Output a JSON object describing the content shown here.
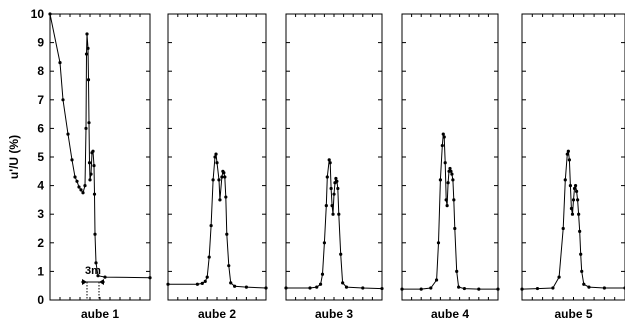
{
  "chart_data": {
    "type": "line",
    "ylabel": "u'/U (%)",
    "ylim": [
      0,
      10
    ],
    "yticks": [
      "0",
      "1",
      "2",
      "3",
      "4",
      "5",
      "6",
      "7",
      "8",
      "9",
      "10"
    ],
    "annotation": "3m",
    "grid": false,
    "panels": [
      {
        "label": "aube 1",
        "points": [
          [
            0.0,
            10.0
          ],
          [
            0.1,
            8.3
          ],
          [
            0.13,
            7.0
          ],
          [
            0.18,
            5.8
          ],
          [
            0.22,
            4.9
          ],
          [
            0.25,
            4.3
          ],
          [
            0.27,
            4.15
          ],
          [
            0.29,
            3.95
          ],
          [
            0.31,
            3.85
          ],
          [
            0.33,
            3.75
          ],
          [
            0.35,
            4.0
          ],
          [
            0.36,
            6.0
          ],
          [
            0.365,
            8.6
          ],
          [
            0.37,
            9.3
          ],
          [
            0.38,
            8.8
          ],
          [
            0.385,
            7.7
          ],
          [
            0.39,
            6.2
          ],
          [
            0.395,
            4.8
          ],
          [
            0.4,
            4.2
          ],
          [
            0.41,
            4.4
          ],
          [
            0.42,
            5.15
          ],
          [
            0.43,
            5.2
          ],
          [
            0.44,
            4.7
          ],
          [
            0.445,
            3.7
          ],
          [
            0.45,
            2.3
          ],
          [
            0.46,
            1.3
          ],
          [
            0.48,
            0.85
          ],
          [
            0.55,
            0.8
          ],
          [
            1.0,
            0.78
          ]
        ]
      },
      {
        "label": "aube 2",
        "points": [
          [
            0.0,
            0.55
          ],
          [
            0.3,
            0.55
          ],
          [
            0.35,
            0.58
          ],
          [
            0.38,
            0.65
          ],
          [
            0.4,
            0.8
          ],
          [
            0.42,
            1.5
          ],
          [
            0.44,
            2.6
          ],
          [
            0.46,
            4.2
          ],
          [
            0.48,
            5.0
          ],
          [
            0.49,
            5.1
          ],
          [
            0.5,
            4.8
          ],
          [
            0.52,
            4.2
          ],
          [
            0.53,
            3.5
          ],
          [
            0.55,
            4.3
          ],
          [
            0.56,
            4.5
          ],
          [
            0.57,
            4.45
          ],
          [
            0.58,
            4.3
          ],
          [
            0.59,
            3.6
          ],
          [
            0.6,
            2.3
          ],
          [
            0.62,
            1.2
          ],
          [
            0.64,
            0.6
          ],
          [
            0.68,
            0.48
          ],
          [
            0.8,
            0.45
          ],
          [
            1.0,
            0.42
          ]
        ]
      },
      {
        "label": "aube 3",
        "points": [
          [
            0.0,
            0.42
          ],
          [
            0.25,
            0.42
          ],
          [
            0.32,
            0.45
          ],
          [
            0.36,
            0.55
          ],
          [
            0.38,
            0.9
          ],
          [
            0.4,
            2.0
          ],
          [
            0.42,
            3.3
          ],
          [
            0.43,
            4.3
          ],
          [
            0.45,
            4.9
          ],
          [
            0.46,
            4.8
          ],
          [
            0.47,
            3.9
          ],
          [
            0.48,
            3.3
          ],
          [
            0.49,
            3.0
          ],
          [
            0.5,
            3.7
          ],
          [
            0.51,
            4.1
          ],
          [
            0.52,
            4.25
          ],
          [
            0.53,
            4.15
          ],
          [
            0.54,
            3.9
          ],
          [
            0.55,
            3.0
          ],
          [
            0.57,
            1.6
          ],
          [
            0.59,
            0.6
          ],
          [
            0.63,
            0.45
          ],
          [
            0.8,
            0.42
          ],
          [
            1.0,
            0.4
          ]
        ]
      },
      {
        "label": "aube 4",
        "points": [
          [
            0.0,
            0.38
          ],
          [
            0.2,
            0.38
          ],
          [
            0.3,
            0.42
          ],
          [
            0.36,
            0.7
          ],
          [
            0.38,
            2.0
          ],
          [
            0.4,
            4.2
          ],
          [
            0.42,
            5.4
          ],
          [
            0.43,
            5.8
          ],
          [
            0.44,
            5.7
          ],
          [
            0.45,
            4.8
          ],
          [
            0.46,
            3.5
          ],
          [
            0.47,
            3.3
          ],
          [
            0.48,
            4.1
          ],
          [
            0.49,
            4.5
          ],
          [
            0.5,
            4.6
          ],
          [
            0.51,
            4.5
          ],
          [
            0.52,
            4.4
          ],
          [
            0.53,
            4.2
          ],
          [
            0.54,
            3.5
          ],
          [
            0.55,
            2.5
          ],
          [
            0.57,
            1.0
          ],
          [
            0.59,
            0.45
          ],
          [
            0.65,
            0.4
          ],
          [
            0.8,
            0.38
          ],
          [
            1.0,
            0.38
          ]
        ]
      },
      {
        "label": "aube 5",
        "points": [
          [
            0.0,
            0.38
          ],
          [
            0.15,
            0.4
          ],
          [
            0.3,
            0.42
          ],
          [
            0.36,
            0.8
          ],
          [
            0.4,
            2.5
          ],
          [
            0.42,
            4.2
          ],
          [
            0.44,
            5.1
          ],
          [
            0.45,
            5.2
          ],
          [
            0.46,
            4.9
          ],
          [
            0.47,
            4.0
          ],
          [
            0.48,
            3.2
          ],
          [
            0.49,
            3.0
          ],
          [
            0.5,
            3.5
          ],
          [
            0.51,
            3.9
          ],
          [
            0.52,
            4.0
          ],
          [
            0.53,
            3.8
          ],
          [
            0.54,
            3.5
          ],
          [
            0.55,
            3.0
          ],
          [
            0.56,
            2.4
          ],
          [
            0.57,
            1.6
          ],
          [
            0.58,
            1.0
          ],
          [
            0.6,
            0.55
          ],
          [
            0.65,
            0.45
          ],
          [
            0.8,
            0.42
          ],
          [
            1.0,
            0.42
          ]
        ]
      }
    ]
  }
}
